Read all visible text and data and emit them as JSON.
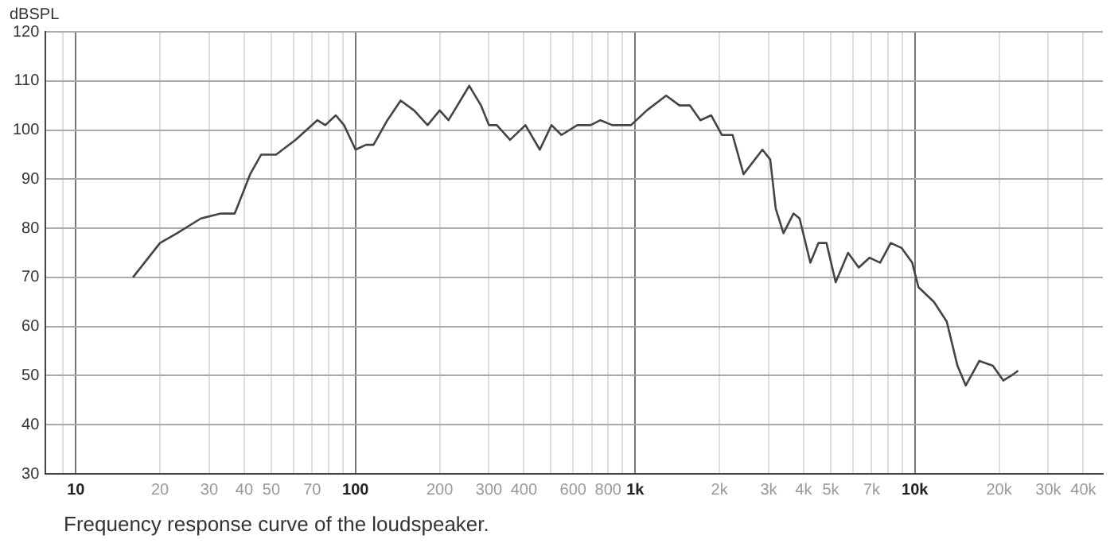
{
  "chart_data": {
    "type": "line",
    "ylabel": "dBSPL",
    "annotations": [
      "Frequency response curve of the loudspeaker."
    ],
    "log": "x",
    "grid": true,
    "legend": false,
    "marker": "none",
    "line_style": "solid",
    "xlim": [
      7.8,
      47000
    ],
    "ylim": [
      30,
      120
    ],
    "xticks": [
      {
        "value": 9,
        "label": null
      },
      10,
      20,
      30,
      40,
      50,
      {
        "value": 60,
        "label": null
      },
      70,
      {
        "value": 80,
        "label": null
      },
      {
        "value": 90,
        "label": null
      },
      100,
      200,
      300,
      400,
      {
        "value": 500,
        "label": null
      },
      600,
      {
        "value": 700,
        "label": null
      },
      800,
      {
        "value": 900,
        "label": null
      },
      {
        "value": 1000,
        "label": "1k"
      },
      {
        "value": 2000,
        "label": "2k"
      },
      {
        "value": 3000,
        "label": "3k"
      },
      {
        "value": 4000,
        "label": "4k"
      },
      {
        "value": 5000,
        "label": "5k"
      },
      {
        "value": 6000,
        "label": null
      },
      {
        "value": 7000,
        "label": "7k"
      },
      {
        "value": 8000,
        "label": null
      },
      {
        "value": 9000,
        "label": null
      },
      {
        "value": 10000,
        "label": "10k"
      },
      {
        "value": 20000,
        "label": "20k"
      },
      {
        "value": 30000,
        "label": "30k"
      },
      {
        "value": 40000,
        "label": "40k"
      }
    ],
    "yticks": [
      30,
      40,
      50,
      60,
      70,
      80,
      90,
      100,
      110,
      120
    ],
    "x": [
      16,
      20,
      23,
      28,
      33,
      37,
      42,
      46,
      52,
      61,
      73,
      78,
      85,
      91,
      100,
      109,
      116,
      130,
      145,
      162,
      181,
      200,
      215,
      255,
      281,
      300,
      320,
      357,
      405,
      456,
      502,
      545,
      621,
      693,
      751,
      828,
      966,
      1100,
      1290,
      1440,
      1570,
      1710,
      1870,
      2040,
      2230,
      2440,
      2850,
      3040,
      3180,
      3390,
      3680,
      3870,
      4230,
      4520,
      4830,
      5210,
      5770,
      6300,
      6880,
      7510,
      8200,
      8960,
      9780,
      10300,
      11700,
      13000,
      14200,
      15200,
      17000,
      19000,
      20700,
      22100,
      23400
    ],
    "series": [
      {
        "color": "#444444",
        "values": [
          70,
          77,
          79,
          82,
          83,
          83,
          91,
          95,
          95,
          98,
          102,
          101,
          103,
          101,
          96,
          97,
          97,
          102,
          106,
          104,
          101,
          104,
          102,
          109,
          105,
          101,
          101,
          98,
          101,
          96,
          101,
          99,
          101,
          101,
          102,
          101,
          101,
          104,
          107,
          105,
          105,
          102,
          103,
          99,
          99,
          91,
          96,
          94,
          84,
          79,
          83,
          82,
          73,
          77,
          77,
          69,
          75,
          72,
          74,
          73,
          77,
          76,
          73,
          68,
          65,
          61,
          52,
          48,
          53,
          52,
          49,
          50,
          51
        ]
      }
    ]
  }
}
